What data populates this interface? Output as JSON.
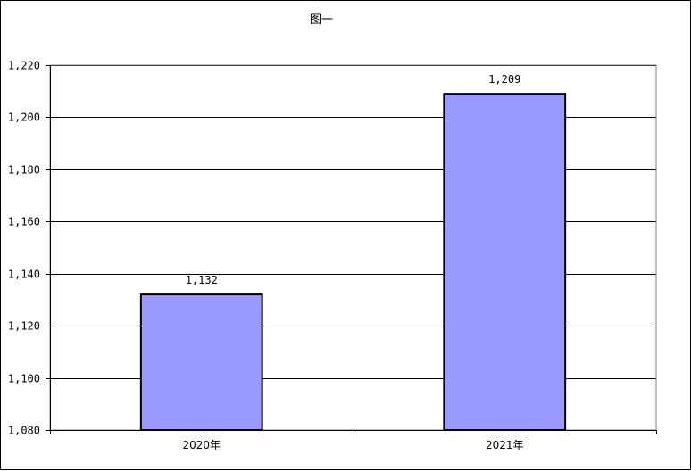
{
  "chart_data": {
    "type": "bar",
    "title": "图一",
    "categories": [
      "2020年",
      "2021年"
    ],
    "values": [
      1132,
      1209
    ],
    "data_labels": [
      "1,132",
      "1,209"
    ],
    "xlabel": "",
    "ylabel": "",
    "ylim": [
      1080,
      1220
    ],
    "yticks": [
      1080,
      1100,
      1120,
      1140,
      1160,
      1180,
      1200,
      1220
    ],
    "ytick_labels": [
      "1,080",
      "1,100",
      "1,120",
      "1,140",
      "1,160",
      "1,180",
      "1,200",
      "1,220"
    ],
    "grid": true,
    "legend": "none",
    "bar_color": "#9999ff",
    "bar_edge_color": "#000000",
    "plot_background": "#ffffff"
  }
}
